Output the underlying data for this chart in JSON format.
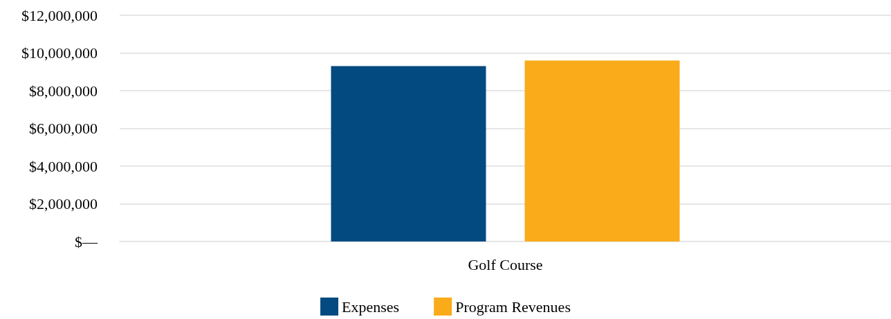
{
  "chart_data": {
    "type": "bar",
    "categories": [
      "Golf Course"
    ],
    "series": [
      {
        "name": "Expenses",
        "color": "#024a7f",
        "values": [
          9300000
        ]
      },
      {
        "name": "Program Revenues",
        "color": "#f9ab19",
        "values": [
          9600000
        ]
      }
    ],
    "ylim": [
      0,
      12000000
    ],
    "yticks": [
      {
        "value": 0,
        "label": "$—"
      },
      {
        "value": 2000000,
        "label": "$2,000,000"
      },
      {
        "value": 4000000,
        "label": "$4,000,000"
      },
      {
        "value": 6000000,
        "label": "$6,000,000"
      },
      {
        "value": 8000000,
        "label": "$8,000,000"
      },
      {
        "value": 10000000,
        "label": "$10,000,000"
      },
      {
        "value": 12000000,
        "label": "$12,000,000"
      }
    ],
    "grid": "y",
    "legend": "bottom"
  }
}
